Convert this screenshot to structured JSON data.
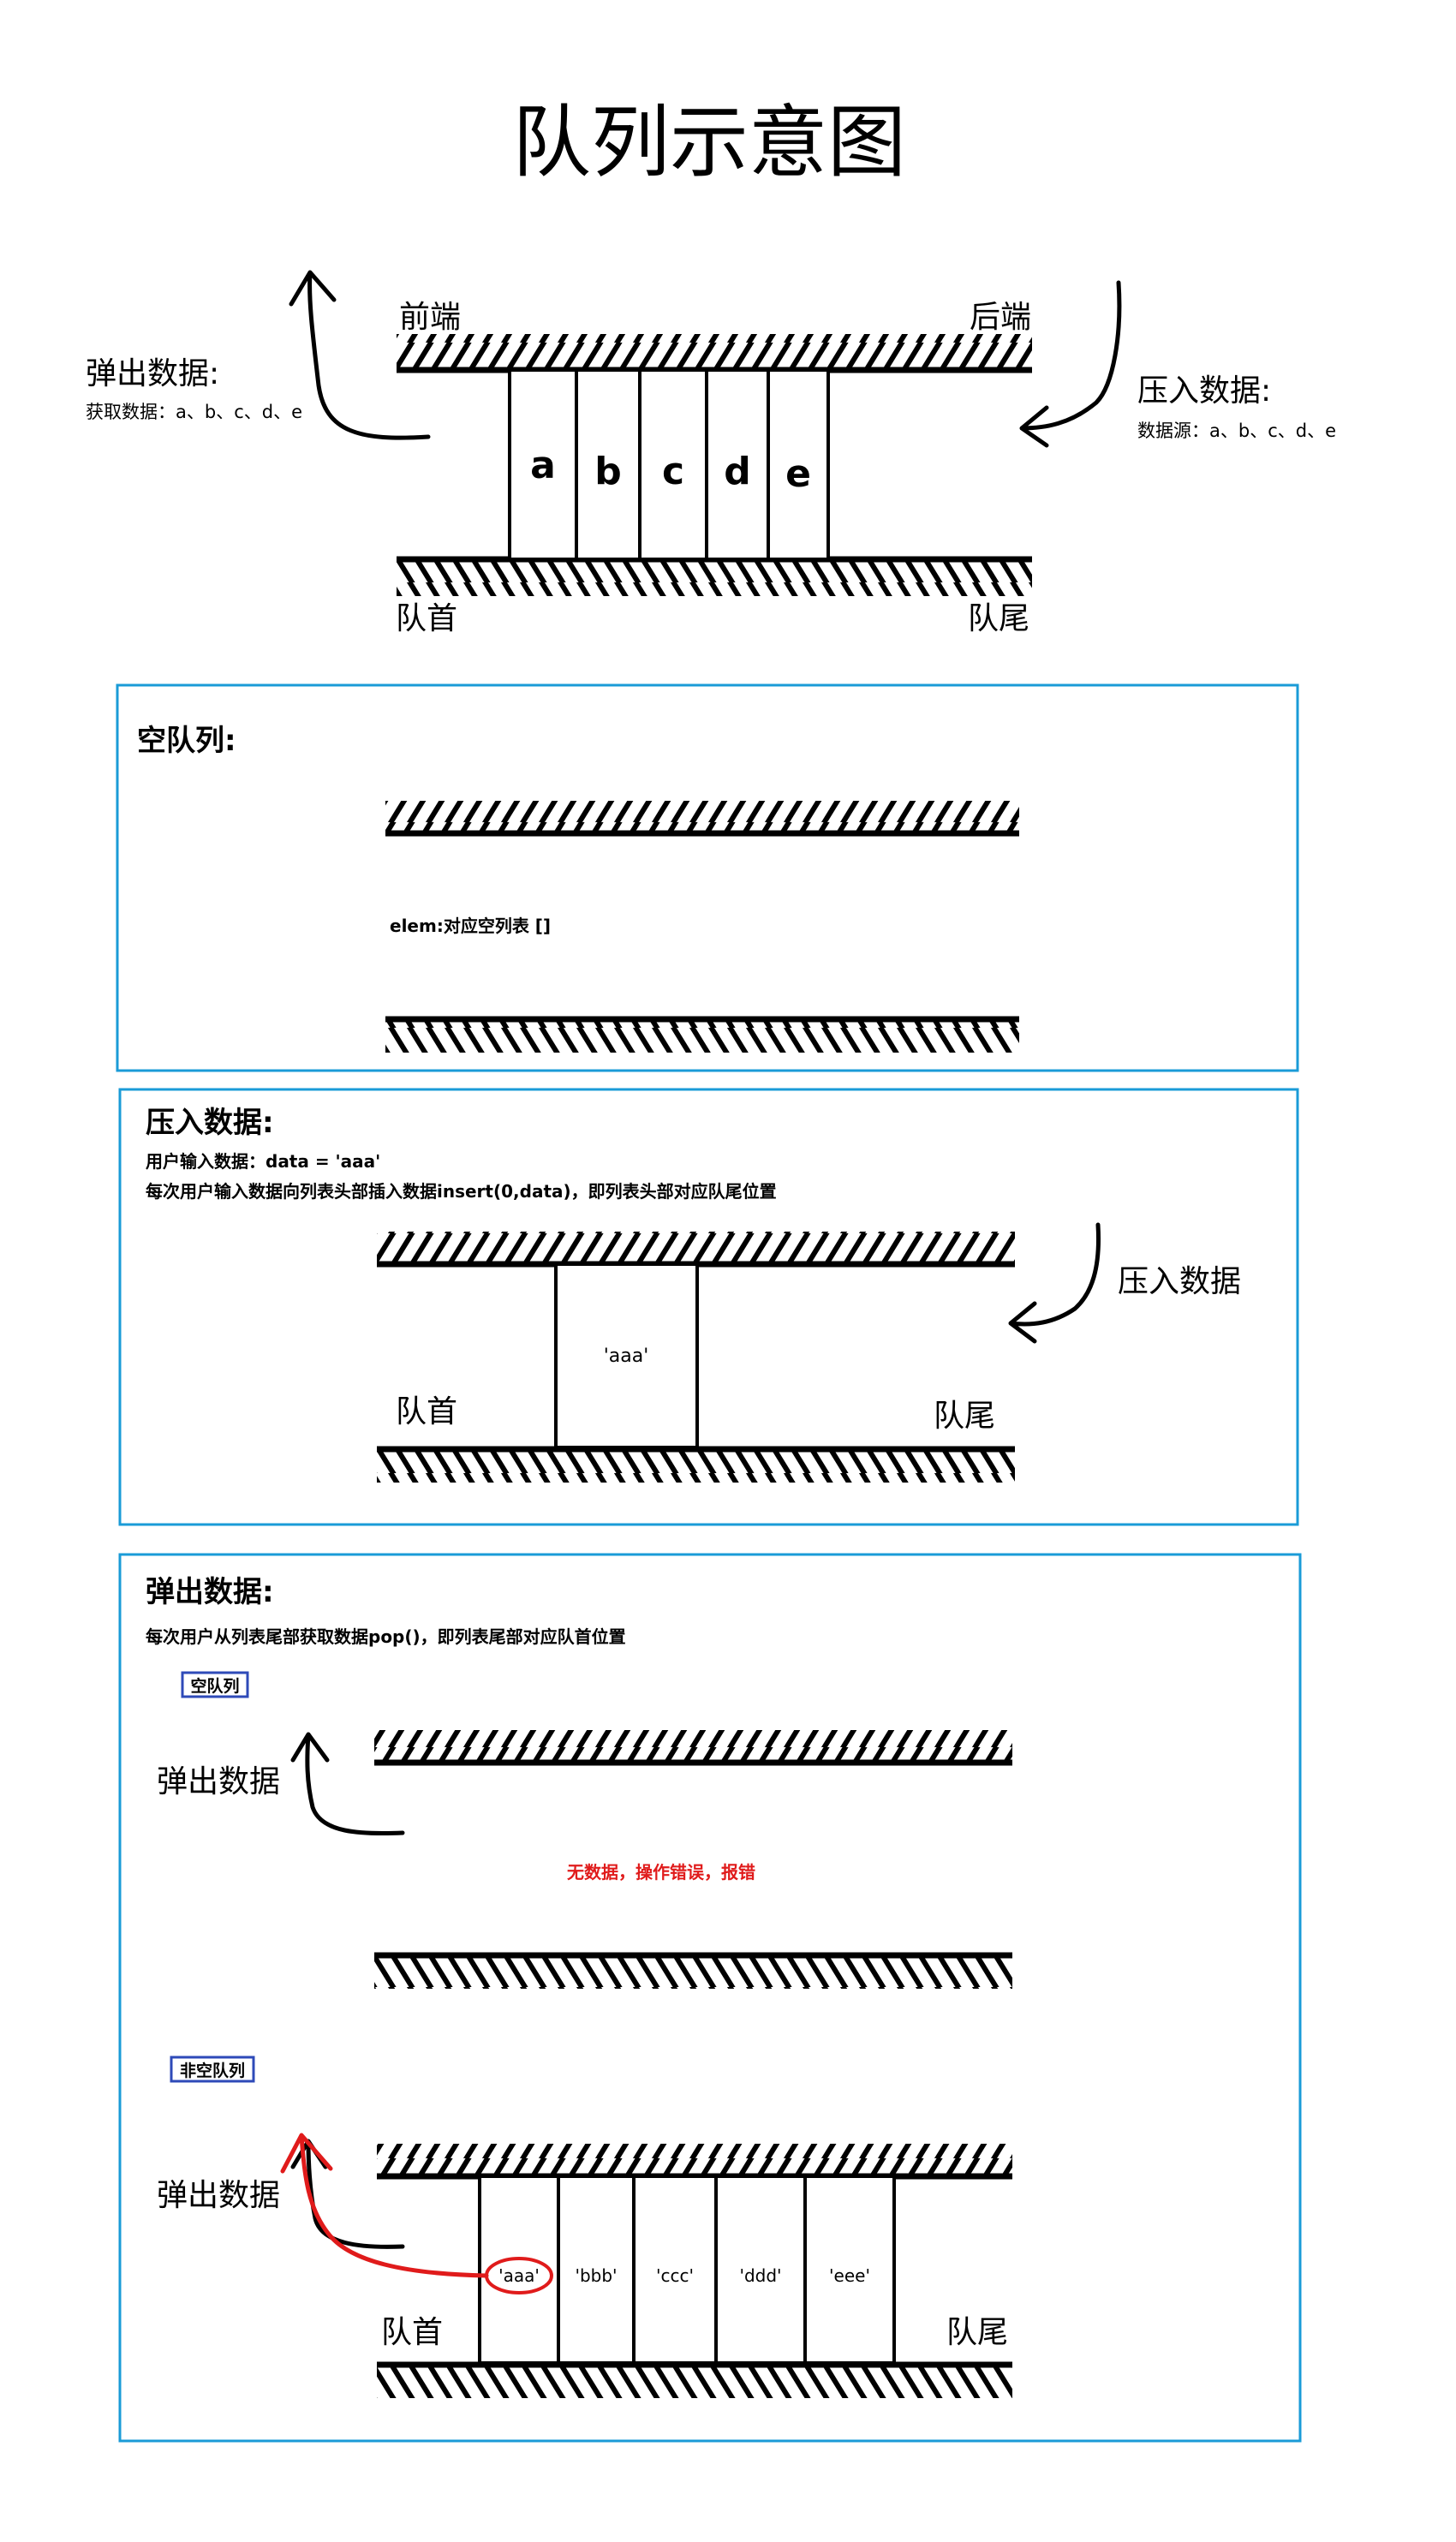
{
  "title": "队列示意图",
  "top": {
    "front_label": "前端",
    "back_label": "后端",
    "head_label": "队首",
    "tail_label": "队尾",
    "pop_title": "弹出数据:",
    "pop_desc": "获取数据：a、b、c、d、e",
    "push_title": "压入数据:",
    "push_desc": "数据源：a、b、c、d、e",
    "items": [
      "a",
      "b",
      "c",
      "d",
      "e"
    ]
  },
  "empty_panel": {
    "title": "空队列:",
    "note": "elem:对应空列表 []"
  },
  "push_panel": {
    "title": "压入数据:",
    "line1": "用户输入数据：data = 'aaa'",
    "line2": "每次用户输入数据向列表头部插入数据insert(0,data)，即列表头部对应队尾位置",
    "item": "'aaa'",
    "head_label": "队首",
    "tail_label": "队尾",
    "arrow_label": "压入数据"
  },
  "pop_panel": {
    "title": "弹出数据:",
    "line1": "每次用户从列表尾部获取数据pop()，即列表尾部对应队首位置",
    "empty_tag": "空队列",
    "empty_arrow_label": "弹出数据",
    "error_text": "无数据，操作错误，报错",
    "nonempty_tag": "非空队列",
    "nonempty_arrow_label": "弹出数据",
    "items": [
      "'aaa'",
      "'bbb'",
      "'ccc'",
      "'ddd'",
      "'eee'"
    ],
    "head_label": "队首",
    "tail_label": "队尾"
  },
  "colors": {
    "panel_border": "#1a9bd7",
    "tag_border": "#2e4ab8",
    "error_red": "#e01b1b",
    "arrow_red": "#e01b1b"
  }
}
